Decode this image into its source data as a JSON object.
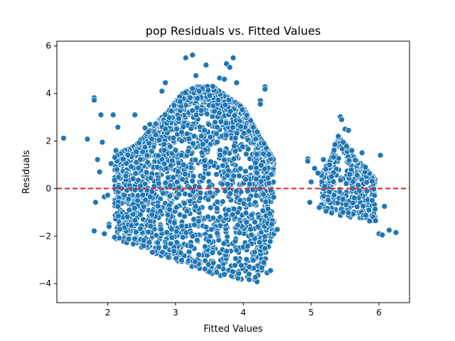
{
  "chart_data": {
    "type": "scatter",
    "title": "pop Residuals vs. Fitted Values",
    "xlabel": "Fitted Values",
    "ylabel": "Residuals",
    "xlim": [
      1.25,
      6.45
    ],
    "ylim": [
      -4.8,
      6.2
    ],
    "xticks": [
      2,
      3,
      4,
      5,
      6
    ],
    "yticks": [
      -4,
      -2,
      0,
      2,
      4,
      6
    ],
    "grid": false,
    "reference_line": {
      "y": 0,
      "color": "#d62728",
      "style": "dashed"
    },
    "point_color": "#1f77b4",
    "point_edge_color": "#ffffff",
    "series": [
      {
        "points": [
          [
            1.35,
            2.12
          ],
          [
            1.7,
            2.08
          ],
          [
            1.8,
            3.82
          ],
          [
            1.8,
            3.72
          ],
          [
            1.8,
            -1.78
          ],
          [
            1.82,
            -0.58
          ],
          [
            1.85,
            1.22
          ],
          [
            1.88,
            0.7
          ],
          [
            1.9,
            3.1
          ],
          [
            1.92,
            1.95
          ],
          [
            1.95,
            -0.35
          ],
          [
            1.95,
            -1.9
          ],
          [
            2.0,
            -0.28
          ],
          [
            2.02,
            -1.5
          ],
          [
            2.02,
            -1.6
          ],
          [
            2.05,
            1.05
          ],
          [
            2.08,
            3.1
          ],
          [
            2.1,
            0.35
          ],
          [
            2.1,
            -2.05
          ],
          [
            2.12,
            1.6
          ],
          [
            2.15,
            2.58
          ],
          [
            2.15,
            -0.75
          ],
          [
            2.4,
            3.1
          ],
          [
            2.55,
            2.55
          ],
          [
            2.6,
            2.38
          ],
          [
            2.62,
            2.7
          ],
          [
            2.8,
            4.1
          ],
          [
            2.85,
            4.45
          ],
          [
            3.15,
            5.5
          ],
          [
            3.25,
            5.62
          ],
          [
            3.3,
            4.75
          ],
          [
            3.35,
            4.1
          ],
          [
            3.45,
            5.2
          ],
          [
            3.55,
            4.3
          ],
          [
            3.65,
            4.65
          ],
          [
            3.72,
            4.6
          ],
          [
            3.75,
            5.25
          ],
          [
            3.8,
            5.1
          ],
          [
            3.85,
            5.5
          ],
          [
            3.9,
            4.45
          ],
          [
            4.25,
            3.7
          ],
          [
            4.25,
            3.55
          ],
          [
            4.32,
            4.28
          ],
          [
            4.32,
            4.18
          ],
          [
            4.35,
            -3.55
          ],
          [
            4.4,
            -3.45
          ],
          [
            4.42,
            -1.5
          ],
          [
            4.45,
            -1.9
          ],
          [
            4.48,
            -1.75
          ],
          [
            4.5,
            -1.72
          ],
          [
            4.95,
            1.25
          ],
          [
            4.95,
            1.15
          ],
          [
            4.98,
            -0.58
          ],
          [
            5.0,
            0.28
          ],
          [
            5.05,
            0.85
          ],
          [
            5.1,
            0.65
          ],
          [
            5.12,
            -0.8
          ],
          [
            5.18,
            1.22
          ],
          [
            5.2,
            0.1
          ],
          [
            5.22,
            -0.95
          ],
          [
            5.3,
            0.5
          ],
          [
            5.35,
            1.85
          ],
          [
            5.4,
            2.2
          ],
          [
            5.43,
            3.02
          ],
          [
            5.45,
            2.9
          ],
          [
            5.5,
            2.5
          ],
          [
            5.55,
            2.45
          ],
          [
            5.6,
            1.6
          ],
          [
            5.65,
            1.2
          ],
          [
            5.75,
            1.5
          ],
          [
            5.8,
            0.9
          ],
          [
            5.85,
            -0.9
          ],
          [
            5.9,
            -0.5
          ],
          [
            5.95,
            -1.35
          ],
          [
            6.0,
            -1.9
          ],
          [
            6.02,
            1.4
          ],
          [
            6.05,
            -1.95
          ],
          [
            6.08,
            -0.75
          ],
          [
            6.15,
            -1.75
          ],
          [
            6.25,
            -1.85
          ]
        ]
      }
    ],
    "dense_regions": [
      {
        "x_range": [
          2.1,
          4.45
        ],
        "upper_edge": [
          [
            2.1,
            1.4
          ],
          [
            2.4,
            1.8
          ],
          [
            2.7,
            2.7
          ],
          [
            2.9,
            3.3
          ],
          [
            3.1,
            4.0
          ],
          [
            3.3,
            4.3
          ],
          [
            3.55,
            4.3
          ],
          [
            3.8,
            3.8
          ],
          [
            4.0,
            3.4
          ],
          [
            4.2,
            2.4
          ],
          [
            4.45,
            1.2
          ]
        ],
        "lower_edge": [
          [
            2.1,
            -2.1
          ],
          [
            2.4,
            -2.4
          ],
          [
            2.7,
            -2.75
          ],
          [
            3.0,
            -3.05
          ],
          [
            3.3,
            -3.35
          ],
          [
            3.6,
            -3.65
          ],
          [
            3.9,
            -3.95
          ],
          [
            4.2,
            -4.2
          ],
          [
            4.45,
            -1.8
          ]
        ],
        "count": 2600
      },
      {
        "x_range": [
          5.15,
          5.95
        ],
        "upper_edge": [
          [
            5.15,
            0.6
          ],
          [
            5.3,
            1.3
          ],
          [
            5.4,
            2.2
          ],
          [
            5.5,
            1.9
          ],
          [
            5.6,
            1.4
          ],
          [
            5.75,
            1.0
          ],
          [
            5.95,
            0.4
          ]
        ],
        "lower_edge": [
          [
            5.15,
            -0.9
          ],
          [
            5.3,
            -1.05
          ],
          [
            5.5,
            -1.2
          ],
          [
            5.7,
            -1.35
          ],
          [
            5.95,
            -1.4
          ]
        ],
        "count": 420
      }
    ]
  }
}
